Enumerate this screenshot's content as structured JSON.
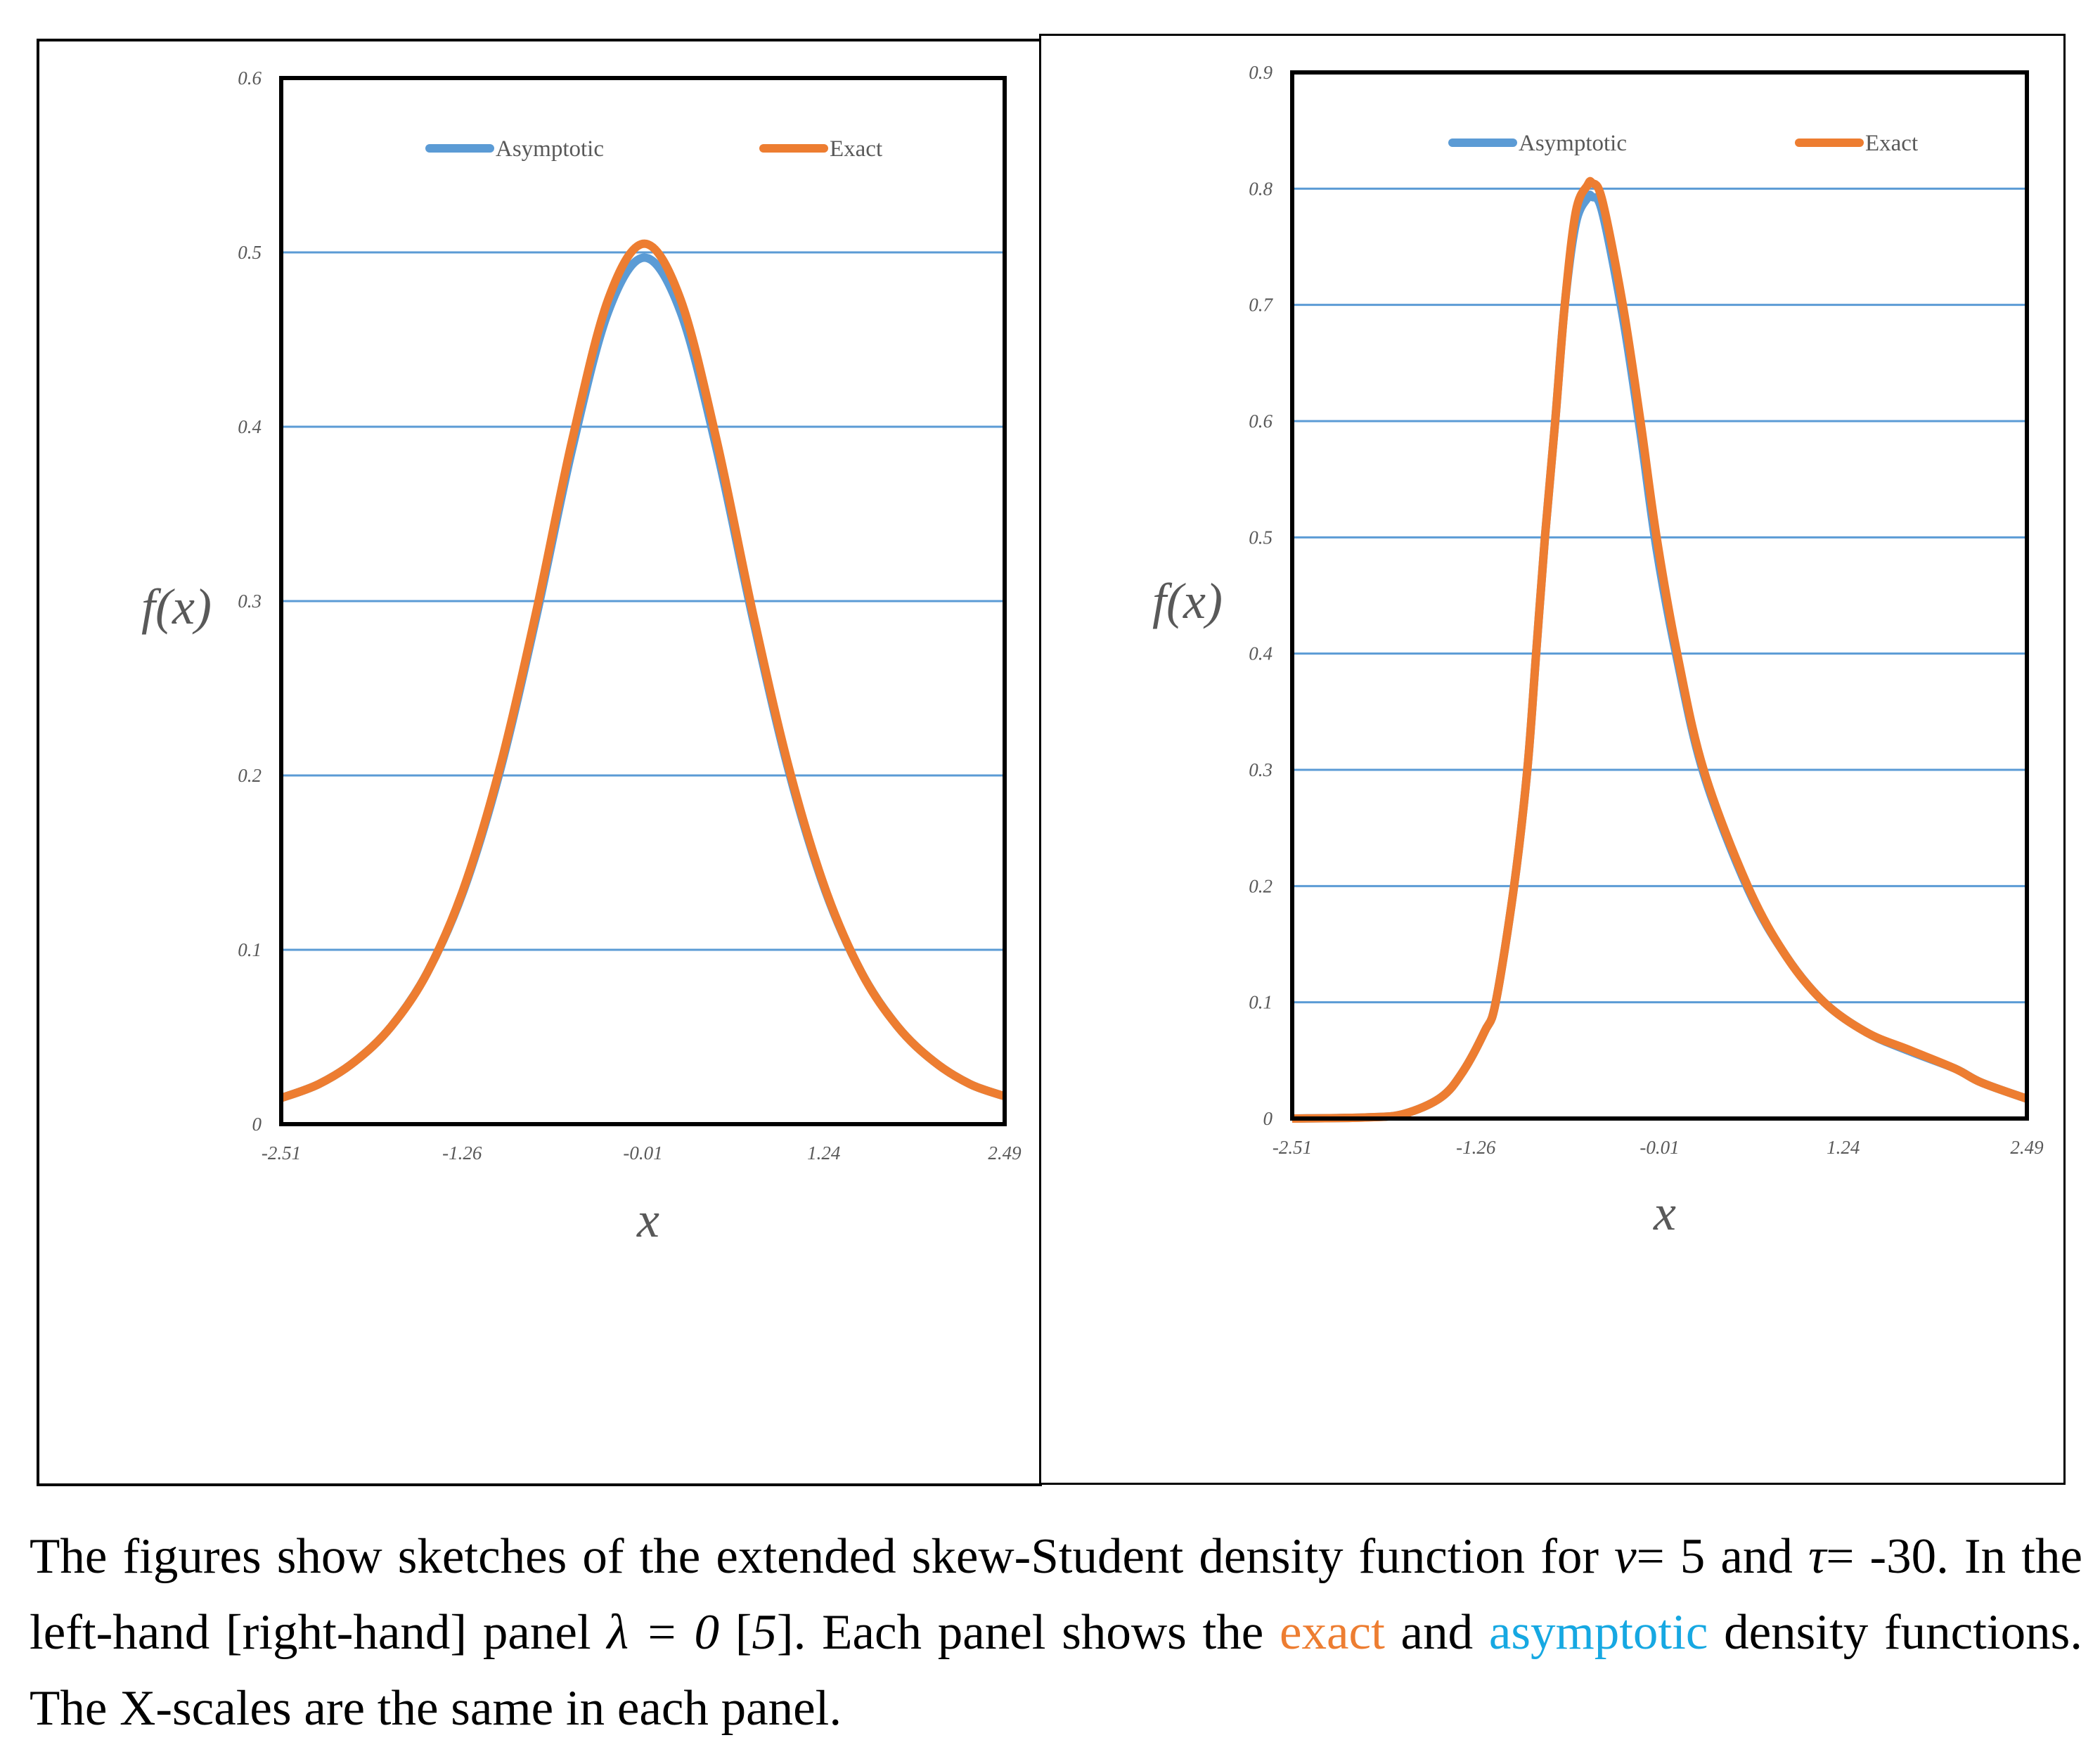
{
  "colors": {
    "asymptotic": "#5b9bd5",
    "exact": "#ed7d31",
    "gridline": "#5b9bd5",
    "frame": "#000000",
    "tick_text": "#595959",
    "caption_asymptotic": "#16a8e2",
    "caption_exact": "#ed7d31"
  },
  "panels": {
    "left": {
      "ylabel": "f(x)",
      "xlabel": "x",
      "legend": {
        "asymptotic": "Asymptotic",
        "exact": "Exact"
      }
    },
    "right": {
      "ylabel": "f(x)",
      "xlabel": "x",
      "legend": {
        "asymptotic": "Asymptotic",
        "exact": "Exact"
      }
    }
  },
  "caption": {
    "part1": "The figures show sketches of the extended skew-Student density function for ",
    "nu_symbol": "ν",
    "part2": "= 5 and ",
    "tau_symbol": "τ",
    "part3": "= -30. In the left-hand [right-hand] panel ",
    "lambda_expr": "λ = 0",
    "part4": " [",
    "lambda_alt": "5",
    "part5": "]. Each panel shows the ",
    "exact_word": "exact",
    "part6": " and ",
    "asymptotic_word": "asymptotic",
    "part7": " density functions. The X-scales are the same in each panel."
  },
  "chart_data": [
    {
      "type": "line",
      "title": "",
      "panel": "left",
      "xlabel": "x",
      "ylabel": "f(x)",
      "xlim": [
        -2.51,
        2.49
      ],
      "ylim": [
        0,
        0.6
      ],
      "x_ticks": [
        "-2.51",
        "-1.26",
        "-0.01",
        "1.24",
        "2.49"
      ],
      "y_ticks": [
        "0",
        "0.1",
        "0.2",
        "0.3",
        "0.4",
        "0.5",
        "0.6"
      ],
      "grid": "horizontal",
      "legend_position": "top",
      "x": [
        -2.51,
        -2.25,
        -2.0,
        -1.75,
        -1.5,
        -1.25,
        -1.0,
        -0.75,
        -0.5,
        -0.25,
        0.0,
        0.25,
        0.5,
        0.75,
        1.0,
        1.25,
        1.5,
        1.75,
        2.0,
        2.25,
        2.49
      ],
      "series": [
        {
          "name": "Asymptotic",
          "color": "#5b9bd5",
          "values": [
            0.015,
            0.023,
            0.036,
            0.056,
            0.087,
            0.134,
            0.202,
            0.29,
            0.387,
            0.466,
            0.497,
            0.466,
            0.387,
            0.29,
            0.202,
            0.134,
            0.087,
            0.056,
            0.036,
            0.023,
            0.016
          ]
        },
        {
          "name": "Exact",
          "color": "#ed7d31",
          "values": [
            0.015,
            0.023,
            0.036,
            0.056,
            0.087,
            0.135,
            0.204,
            0.293,
            0.392,
            0.473,
            0.505,
            0.473,
            0.392,
            0.293,
            0.204,
            0.135,
            0.087,
            0.056,
            0.036,
            0.023,
            0.016
          ]
        }
      ]
    },
    {
      "type": "line",
      "title": "",
      "panel": "right",
      "xlabel": "x",
      "ylabel": "f(x)",
      "xlim": [
        -2.51,
        2.49
      ],
      "ylim": [
        0,
        0.9
      ],
      "x_ticks": [
        "-2.51",
        "-1.26",
        "-0.01",
        "1.24",
        "2.49"
      ],
      "y_ticks": [
        "0",
        "0.1",
        "0.2",
        "0.3",
        "0.4",
        "0.5",
        "0.6",
        "0.7",
        "0.8",
        "0.9"
      ],
      "grid": "horizontal",
      "legend_position": "top",
      "x": [
        -2.51,
        -2.0,
        -1.75,
        -1.5,
        -1.35,
        -1.2,
        -1.125,
        -1.0,
        -0.91,
        -0.85,
        -0.79,
        -0.72,
        -0.655,
        -0.58,
        -0.5,
        -0.47,
        -0.4,
        -0.26,
        -0.14,
        -0.03,
        0.11,
        0.29,
        0.59,
        0.85,
        1.11,
        1.4,
        1.69,
        2.0,
        2.18,
        2.49
      ],
      "series": [
        {
          "name": "Asymptotic",
          "color": "#5b9bd5",
          "values": [
            0.0,
            0.001,
            0.004,
            0.018,
            0.04,
            0.075,
            0.1,
            0.2,
            0.3,
            0.4,
            0.5,
            0.6,
            0.7,
            0.77,
            0.792,
            0.793,
            0.78,
            0.69,
            0.59,
            0.49,
            0.395,
            0.297,
            0.198,
            0.14,
            0.1,
            0.074,
            0.058,
            0.043,
            0.031,
            0.017
          ]
        },
        {
          "name": "Exact",
          "color": "#ed7d31",
          "values": [
            0.0,
            0.001,
            0.004,
            0.018,
            0.04,
            0.075,
            0.1,
            0.2,
            0.3,
            0.4,
            0.5,
            0.6,
            0.7,
            0.78,
            0.803,
            0.805,
            0.79,
            0.7,
            0.6,
            0.5,
            0.4,
            0.3,
            0.2,
            0.14,
            0.1,
            0.074,
            0.059,
            0.043,
            0.031,
            0.017
          ]
        }
      ]
    }
  ]
}
